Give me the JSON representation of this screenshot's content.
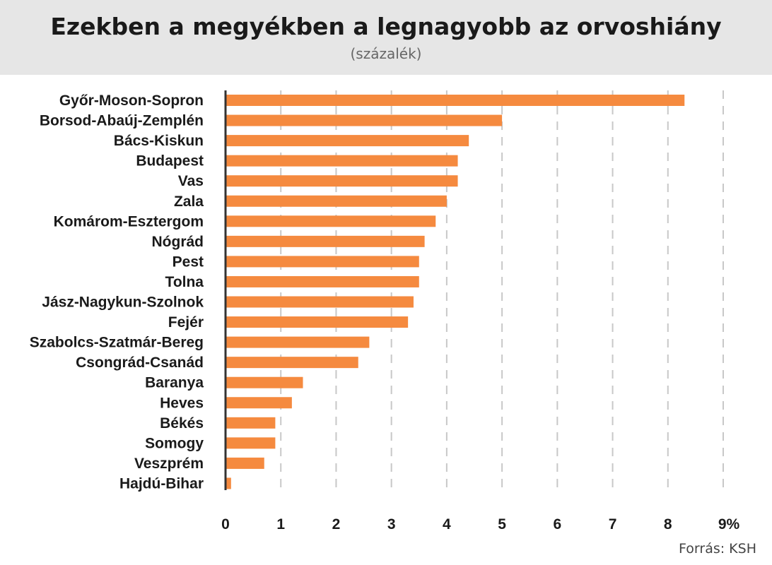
{
  "header": {
    "title": "Ezekben a megyékben a legnagyobb az orvoshiány",
    "subtitle": "(százalék)"
  },
  "source": "Forrás: KSH",
  "colors": {
    "bar": "#f58a3f",
    "axis": "#333333",
    "grid": "#c8c8c8",
    "header_bg": "#e6e6e6"
  },
  "chart_data": {
    "type": "bar",
    "orientation": "horizontal",
    "title": "Ezekben a megyékben a legnagyobb az orvoshiány",
    "subtitle": "(százalék)",
    "categories": [
      "Győr-Moson-Sopron",
      "Borsod-Abaúj-Zemplén",
      "Bács-Kiskun",
      "Budapest",
      "Vas",
      "Zala",
      "Komárom-Esztergom",
      "Nógrád",
      "Pest",
      "Tolna",
      "Jász-Nagykun-Szolnok",
      "Fejér",
      "Szabolcs-Szatmár-Bereg",
      "Csongrád-Csanád",
      "Baranya",
      "Heves",
      "Békés",
      "Somogy",
      "Veszprém",
      "Hajdú-Bihar"
    ],
    "values": [
      8.3,
      5.0,
      4.4,
      4.2,
      4.2,
      4.0,
      3.8,
      3.6,
      3.5,
      3.5,
      3.4,
      3.3,
      2.6,
      2.4,
      1.4,
      1.2,
      0.9,
      0.9,
      0.7,
      0.1
    ],
    "xlim": [
      0,
      9
    ],
    "xticks": [
      "0",
      "1",
      "2",
      "3",
      "4",
      "5",
      "6",
      "7",
      "8",
      "9%"
    ],
    "grid": "vertical dashed",
    "legend": "none"
  }
}
